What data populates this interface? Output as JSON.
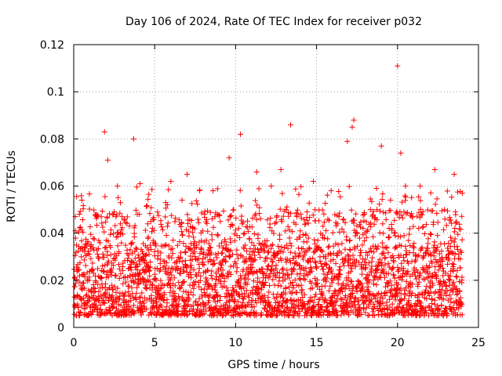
{
  "chart_data": {
    "type": "scatter",
    "title": "Day 106 of 2024, Rate Of TEC Index for receiver p032",
    "xlabel": "GPS time / hours",
    "ylabel": "ROTI / TECUs",
    "xlim": [
      0,
      25
    ],
    "ylim": [
      0,
      0.12
    ],
    "xticks": [
      0,
      5,
      10,
      15,
      20,
      25
    ],
    "xtick_labels": [
      "0",
      "5",
      "10",
      "15",
      "20",
      "25"
    ],
    "yticks": [
      0,
      0.02,
      0.04,
      0.06,
      0.08,
      0.1,
      0.12
    ],
    "ytick_labels": [
      "0",
      "0.02",
      "0.04",
      "0.06",
      "0.08",
      "0.1",
      "0.12"
    ],
    "grid": true,
    "marker": "+",
    "marker_color": "#ff0000",
    "data_x_range": [
      0,
      24
    ],
    "bulk_range": [
      0.005,
      0.035
    ],
    "median_estimate": 0.015,
    "notable_points": [
      {
        "x": 20.0,
        "y": 0.111
      },
      {
        "x": 1.9,
        "y": 0.083
      },
      {
        "x": 3.7,
        "y": 0.08
      },
      {
        "x": 10.3,
        "y": 0.082
      },
      {
        "x": 13.4,
        "y": 0.086
      },
      {
        "x": 17.3,
        "y": 0.088
      },
      {
        "x": 17.2,
        "y": 0.085
      },
      {
        "x": 16.9,
        "y": 0.079
      },
      {
        "x": 19.0,
        "y": 0.077
      },
      {
        "x": 20.2,
        "y": 0.074
      },
      {
        "x": 2.1,
        "y": 0.071
      },
      {
        "x": 9.6,
        "y": 0.072
      },
      {
        "x": 11.3,
        "y": 0.066
      },
      {
        "x": 12.8,
        "y": 0.067
      },
      {
        "x": 22.3,
        "y": 0.067
      },
      {
        "x": 23.5,
        "y": 0.065
      },
      {
        "x": 7.0,
        "y": 0.065
      },
      {
        "x": 6.0,
        "y": 0.062
      },
      {
        "x": 4.1,
        "y": 0.061
      },
      {
        "x": 14.8,
        "y": 0.062
      },
      {
        "x": 18.7,
        "y": 0.059
      },
      {
        "x": 24.0,
        "y": 0.057
      },
      {
        "x": 0.1,
        "y": 0.041
      },
      {
        "x": 0.5,
        "y": 0.054
      },
      {
        "x": 2.7,
        "y": 0.06
      },
      {
        "x": 8.6,
        "y": 0.058
      },
      {
        "x": 12.2,
        "y": 0.06
      },
      {
        "x": 15.9,
        "y": 0.058
      },
      {
        "x": 21.4,
        "y": 0.06
      }
    ]
  }
}
